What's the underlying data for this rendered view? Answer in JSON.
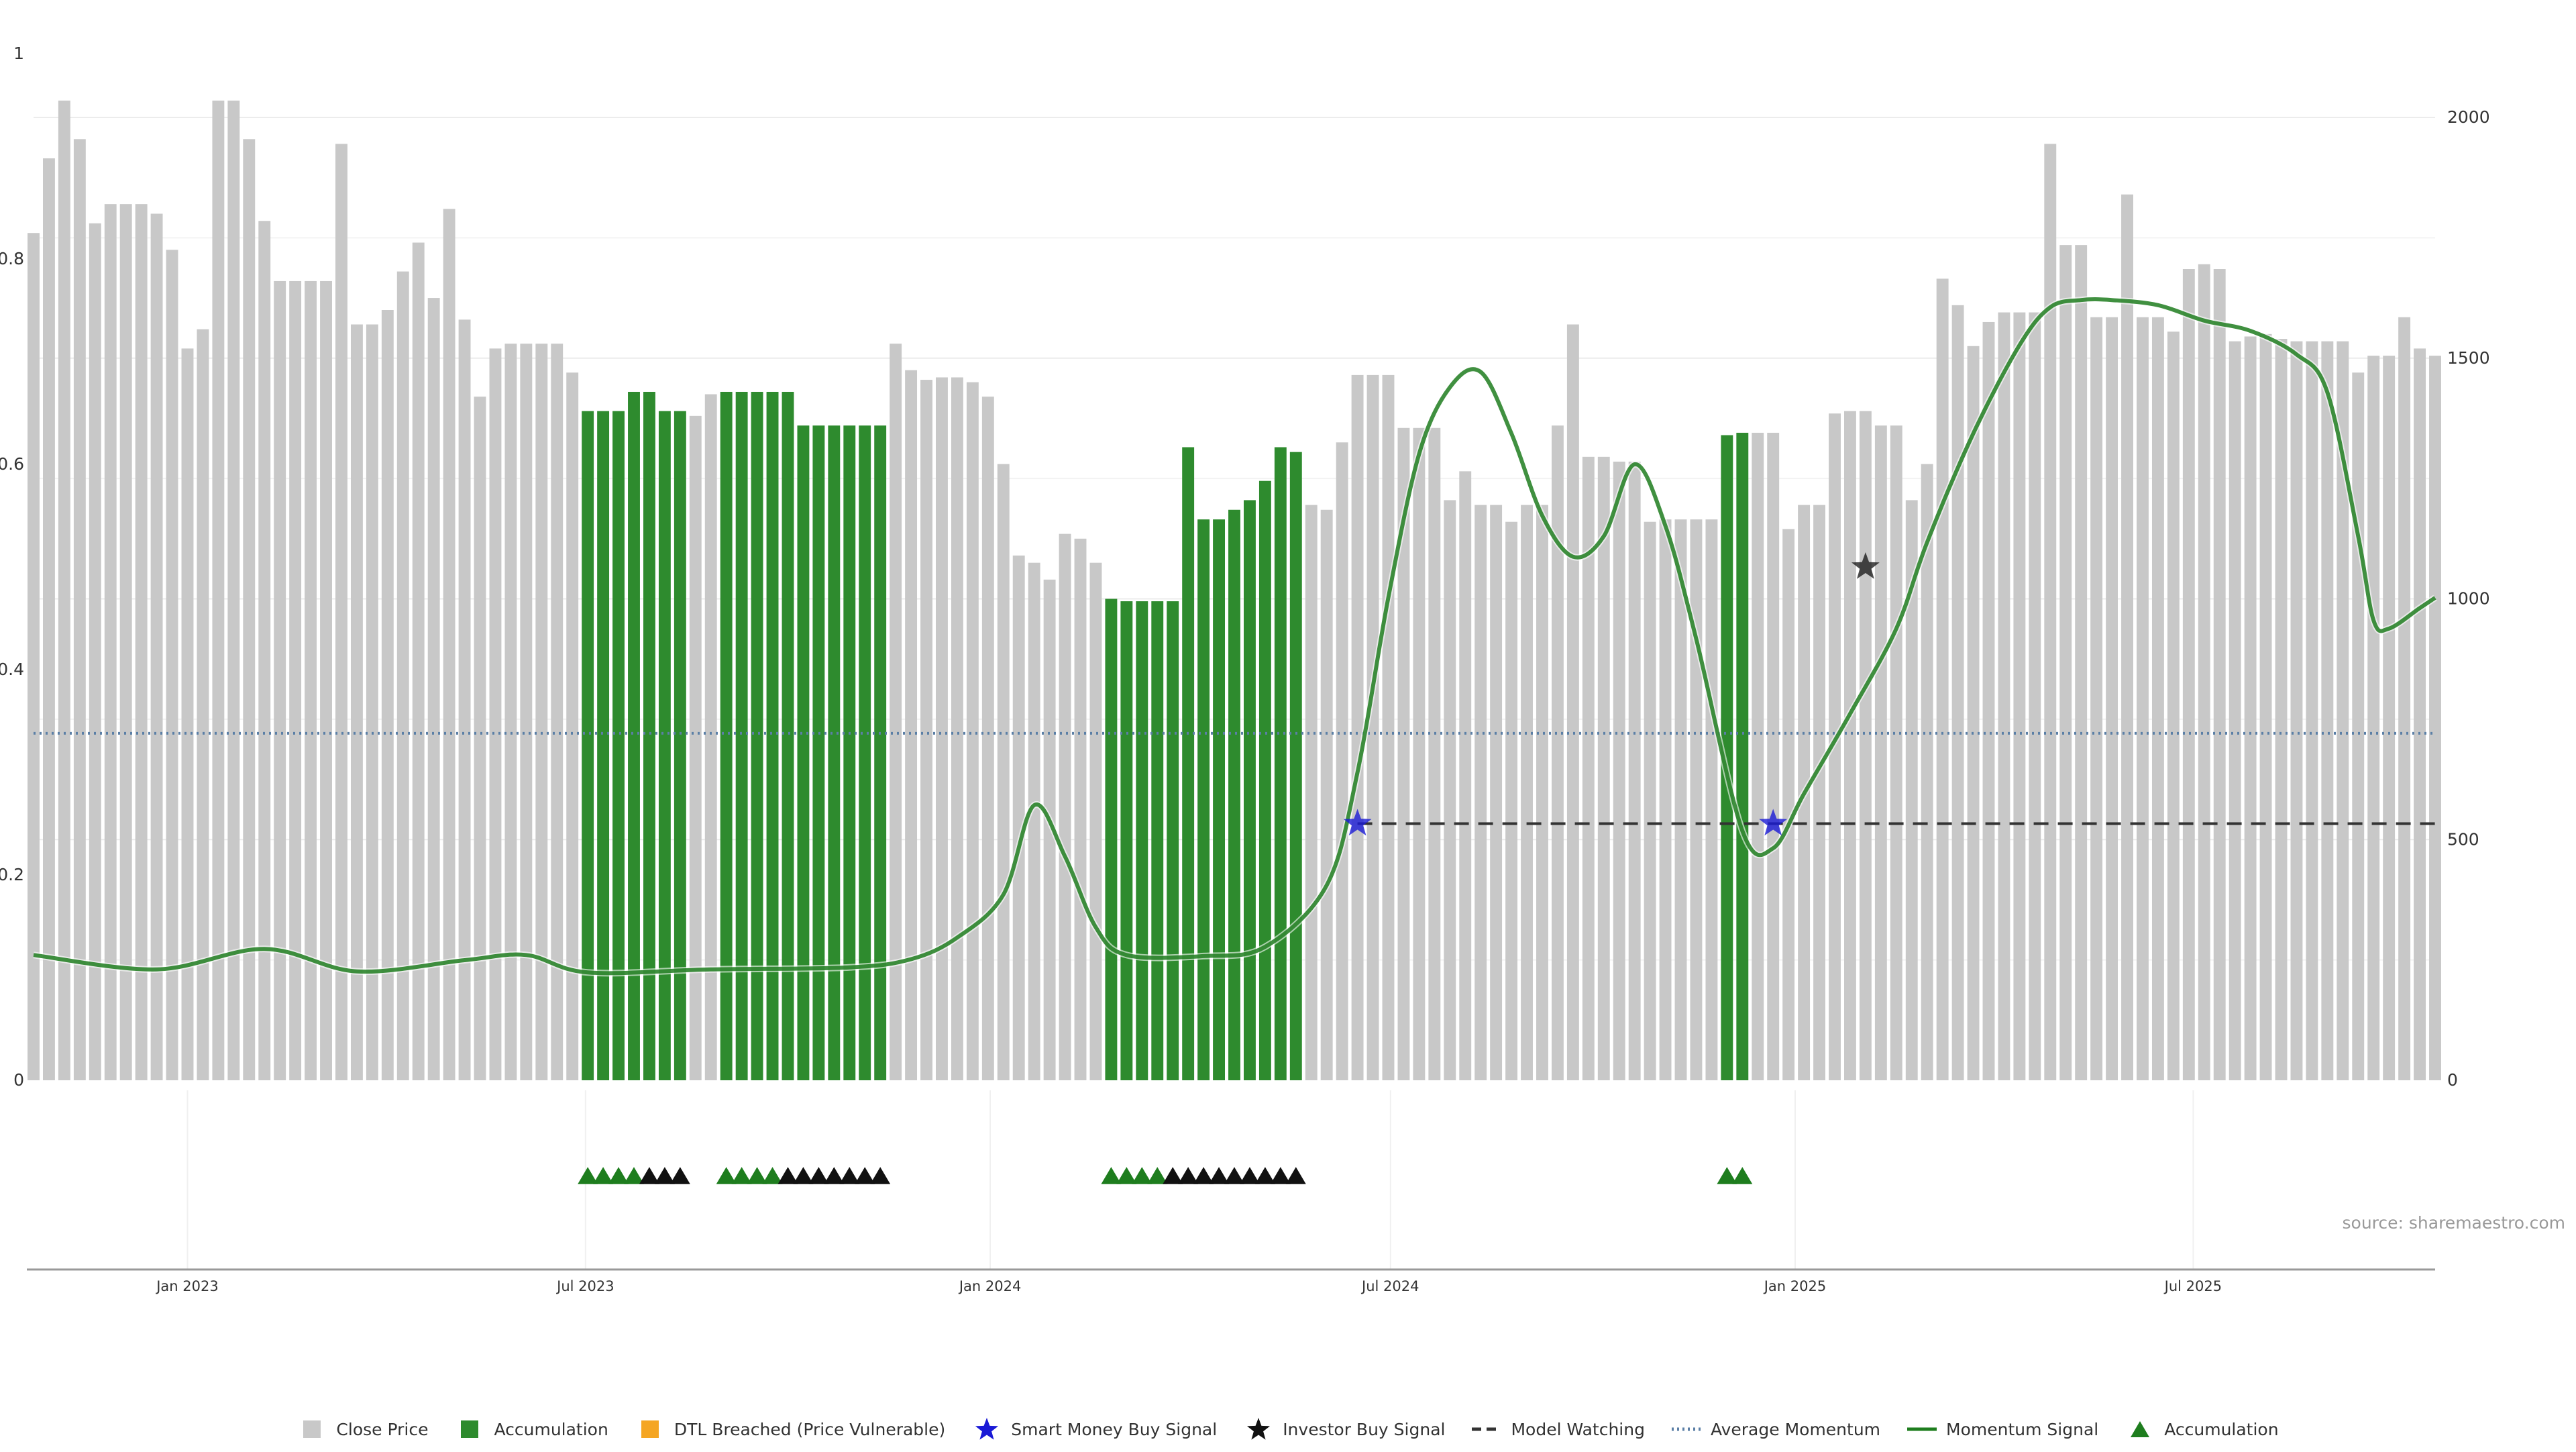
{
  "chart_data": {
    "type": "bar",
    "title": "",
    "source_text": "source: sharemaestro.com",
    "left_axis": {
      "ylim": [
        0,
        1
      ],
      "ticks": [
        "0",
        "0.2",
        "0.4",
        "0.6",
        "0.8",
        "1"
      ],
      "tick_values": [
        0,
        0.2,
        0.4,
        0.6,
        0.8,
        1
      ]
    },
    "right_axis": {
      "ylim": [
        0,
        2140
      ],
      "ticks": [
        "0",
        "500",
        "1000",
        "1500",
        "2000"
      ],
      "tick_values": [
        0,
        500,
        1000,
        1500,
        2000
      ]
    },
    "x_axis": {
      "start": "2022-10-23",
      "end": "2025-10-19",
      "ticks": [
        {
          "label": "Jan 2023",
          "date": "2023-01-01"
        },
        {
          "label": "Jul 2023",
          "date": "2023-07-01"
        },
        {
          "label": "Jan 2024",
          "date": "2024-01-01"
        },
        {
          "label": "Jul 2024",
          "date": "2024-07-01"
        },
        {
          "label": "Jan 2025",
          "date": "2025-01-01"
        },
        {
          "label": "Jul 2025",
          "date": "2025-07-01"
        }
      ]
    },
    "colors": {
      "close_price": "#c8c8c8",
      "accumulation": "#2e8b2e",
      "dtl_breached": "#f5a623",
      "smart_money": "#1a1ad6",
      "investor": "#111111",
      "model_watching": "#333333",
      "average_momentum": "#5b7fa6",
      "momentum_signal": "#1e7d1e",
      "marker_green": "#1e7d1e",
      "marker_black": "#111111"
    },
    "bar_start_date": "2022-10-23",
    "bar_interval_days": 7,
    "close_price_values": [
      1760,
      1915,
      2035,
      1955,
      1780,
      1820,
      1820,
      1820,
      1800,
      1725,
      1520,
      1560,
      2035,
      2035,
      1955,
      1785,
      1660,
      1660,
      1660,
      1660,
      1945,
      1570,
      1570,
      1600,
      1680,
      1740,
      1625,
      1810,
      1580,
      1420,
      1520,
      1530,
      1530,
      1530,
      1530,
      1470,
      1390,
      1390,
      1390,
      1430,
      1430,
      1390,
      1390,
      1380,
      1425,
      1430,
      1430,
      1430,
      1430,
      1430,
      1360,
      1360,
      1360,
      1360,
      1360,
      1360,
      1530,
      1475,
      1455,
      1460,
      1460,
      1450,
      1420,
      1280,
      1090,
      1075,
      1040,
      1135,
      1125,
      1075,
      1000,
      995,
      995,
      995,
      995,
      1315,
      1165,
      1165,
      1185,
      1205,
      1245,
      1315,
      1305,
      1195,
      1185,
      1325,
      1465,
      1465,
      1465,
      1355,
      1355,
      1355,
      1205,
      1265,
      1195,
      1195,
      1160,
      1195,
      1195,
      1360,
      1570,
      1295,
      1295,
      1285,
      1285,
      1160,
      1165,
      1165,
      1165,
      1165,
      1340,
      1345,
      1345,
      1345,
      1145,
      1195,
      1195,
      1385,
      1390,
      1390,
      1360,
      1360,
      1205,
      1280,
      1665,
      1610,
      1525,
      1575,
      1595,
      1595,
      1595,
      1945,
      1735,
      1735,
      1585,
      1585,
      1840,
      1585,
      1585,
      1555,
      1685,
      1695,
      1685,
      1535,
      1545,
      1550,
      1540,
      1535,
      1535,
      1535,
      1535,
      1470,
      1505,
      1505,
      1585,
      1520,
      1505
    ],
    "accumulation_ranges": [
      [
        36,
        42
      ],
      [
        45,
        55
      ],
      [
        70,
        82
      ],
      [
        110,
        111
      ]
    ],
    "momentum_signal": [
      [
        "2022-10-23",
        0.122
      ],
      [
        "2022-12-18",
        0.108
      ],
      [
        "2023-02-05",
        0.128
      ],
      [
        "2023-03-19",
        0.106
      ],
      [
        "2023-05-07",
        0.117
      ],
      [
        "2023-06-04",
        0.122
      ],
      [
        "2023-07-02",
        0.105
      ],
      [
        "2023-08-27",
        0.108
      ],
      [
        "2023-10-29",
        0.11
      ],
      [
        "2023-11-26",
        0.118
      ],
      [
        "2023-12-17",
        0.139
      ],
      [
        "2024-01-07",
        0.181
      ],
      [
        "2024-01-21",
        0.268
      ],
      [
        "2024-02-04",
        0.218
      ],
      [
        "2024-02-18",
        0.149
      ],
      [
        "2024-03-03",
        0.122
      ],
      [
        "2024-04-07",
        0.121
      ],
      [
        "2024-05-05",
        0.13
      ],
      [
        "2024-06-02",
        0.19
      ],
      [
        "2024-06-16",
        0.3
      ],
      [
        "2024-06-30",
        0.47
      ],
      [
        "2024-07-14",
        0.61
      ],
      [
        "2024-07-28",
        0.675
      ],
      [
        "2024-08-11",
        0.69
      ],
      [
        "2024-08-25",
        0.63
      ],
      [
        "2024-09-08",
        0.55
      ],
      [
        "2024-09-22",
        0.51
      ],
      [
        "2024-10-06",
        0.53
      ],
      [
        "2024-10-20",
        0.6
      ],
      [
        "2024-11-03",
        0.54
      ],
      [
        "2024-11-17",
        0.43
      ],
      [
        "2024-12-08",
        0.243
      ],
      [
        "2024-12-22",
        0.226
      ],
      [
        "2025-01-05",
        0.279
      ],
      [
        "2025-01-26",
        0.357
      ],
      [
        "2025-02-16",
        0.44
      ],
      [
        "2025-03-02",
        0.524
      ],
      [
        "2025-03-23",
        0.63
      ],
      [
        "2025-04-13",
        0.716
      ],
      [
        "2025-04-27",
        0.753
      ],
      [
        "2025-05-11",
        0.76
      ],
      [
        "2025-05-25",
        0.76
      ],
      [
        "2025-06-15",
        0.755
      ],
      [
        "2025-07-06",
        0.74
      ],
      [
        "2025-07-27",
        0.73
      ],
      [
        "2025-08-17",
        0.707
      ],
      [
        "2025-08-31",
        0.67
      ],
      [
        "2025-09-14",
        0.53
      ],
      [
        "2025-09-21",
        0.448
      ],
      [
        "2025-09-28",
        0.44
      ],
      [
        "2025-10-12",
        0.46
      ],
      [
        "2025-10-19",
        0.47
      ]
    ],
    "average_momentum": 0.338,
    "model_watching": {
      "value": 0.25,
      "start": "2024-06-16",
      "end": "2025-10-19"
    },
    "smart_money_buy_signals": [
      {
        "date": "2024-06-16",
        "value": 0.25
      },
      {
        "date": "2024-12-22",
        "value": 0.25
      }
    ],
    "investor_buy_signals": [
      {
        "date": "2025-02-02",
        "value": 0.5
      }
    ],
    "accumulation_markers": {
      "green_indices": [
        36,
        37,
        38,
        39,
        45,
        46,
        47,
        48,
        70,
        71,
        72,
        73,
        110,
        111
      ],
      "black_indices": [
        40,
        41,
        42,
        49,
        50,
        51,
        52,
        53,
        54,
        55,
        74,
        75,
        76,
        77,
        78,
        79,
        80,
        81,
        82
      ]
    },
    "legend": [
      {
        "label": "Close Price",
        "kind": "square",
        "color": "#c8c8c8"
      },
      {
        "label": "Accumulation",
        "kind": "square",
        "color": "#2e8b2e"
      },
      {
        "label": "DTL Breached (Price Vulnerable)",
        "kind": "square",
        "color": "#f5a623"
      },
      {
        "label": "Smart Money Buy Signal",
        "kind": "star",
        "color": "#1a1ad6"
      },
      {
        "label": "Investor Buy Signal",
        "kind": "star",
        "color": "#111111"
      },
      {
        "label": "Model Watching",
        "kind": "dash",
        "color": "#333333"
      },
      {
        "label": "Average Momentum",
        "kind": "dot",
        "color": "#5b7fa6"
      },
      {
        "label": "Momentum Signal",
        "kind": "line",
        "color": "#1e7d1e"
      },
      {
        "label": "Accumulation",
        "kind": "triangle",
        "color": "#1e7d1e"
      }
    ]
  }
}
